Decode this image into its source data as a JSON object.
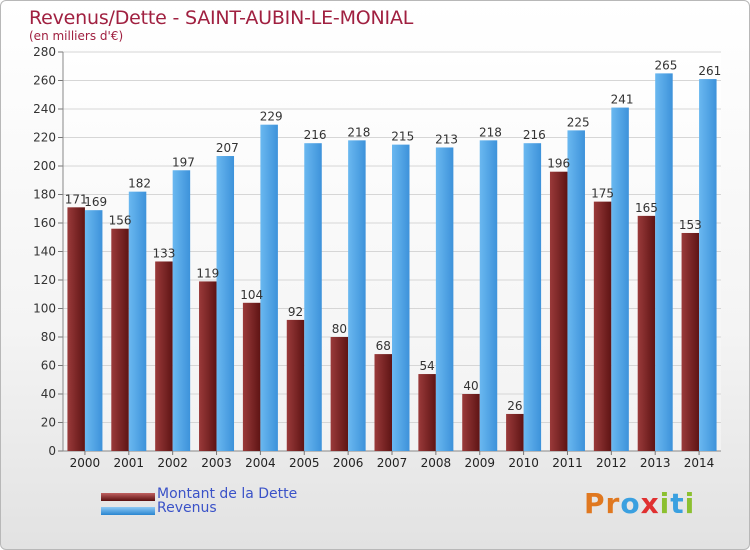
{
  "title": "Revenus/Dette - SAINT-AUBIN-LE-MONIAL",
  "subtitle": "(en milliers d'€)",
  "legend": {
    "debt": "Montant de la Dette",
    "revenue": "Revenus"
  },
  "logo": {
    "text": "Proxiti",
    "letters": [
      "P",
      "r",
      "o",
      "x",
      "i",
      "t",
      "i"
    ],
    "colors": [
      "#e07820",
      "#e07820",
      "#3aa0e0",
      "#e03030",
      "#8cc030",
      "#3aa0e0",
      "#8cc030"
    ]
  },
  "colors": {
    "debt": "#7a2323",
    "revenue": "#4aa3e8",
    "grid": "#d6d6d6",
    "title": "#a02040"
  },
  "chart_data": {
    "type": "bar",
    "title": "Revenus/Dette - SAINT-AUBIN-LE-MONIAL",
    "subtitle": "(en milliers d'€)",
    "categories": [
      "2000",
      "2001",
      "2002",
      "2003",
      "2004",
      "2005",
      "2006",
      "2007",
      "2008",
      "2009",
      "2010",
      "2011",
      "2012",
      "2013",
      "2014"
    ],
    "series": [
      {
        "name": "Montant de la Dette",
        "values": [
          171,
          156,
          133,
          119,
          104,
          92,
          80,
          68,
          54,
          40,
          26,
          196,
          175,
          165,
          153
        ]
      },
      {
        "name": "Revenus",
        "values": [
          169,
          182,
          197,
          207,
          229,
          216,
          218,
          215,
          213,
          218,
          216,
          225,
          241,
          265,
          261
        ]
      }
    ],
    "yticks": [
      0,
      20,
      40,
      60,
      80,
      100,
      120,
      140,
      160,
      180,
      200,
      220,
      240,
      260,
      280
    ],
    "ylim": [
      0,
      280
    ],
    "grid": true,
    "legend_position": "bottom-left"
  }
}
